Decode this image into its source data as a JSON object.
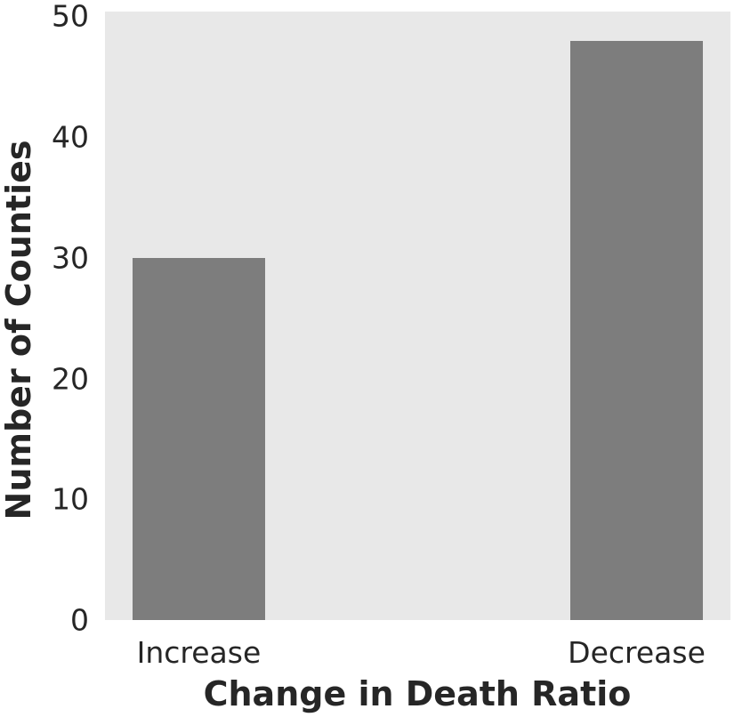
{
  "chart_data": {
    "type": "bar",
    "categories": [
      "Increase",
      "Decrease"
    ],
    "values": [
      30,
      48
    ],
    "title": "",
    "xlabel": "Change in Death Ratio",
    "ylabel": "Number of Counties",
    "yticks": [
      0,
      10,
      20,
      30,
      40,
      50
    ],
    "ylim": [
      0,
      50.4
    ],
    "grid": false,
    "legend_position": "none",
    "colors": {
      "bar": "#7d7d7d",
      "plot_background": "#e8e8e8",
      "figure_background": "#ffffff",
      "text": "#262626"
    }
  }
}
